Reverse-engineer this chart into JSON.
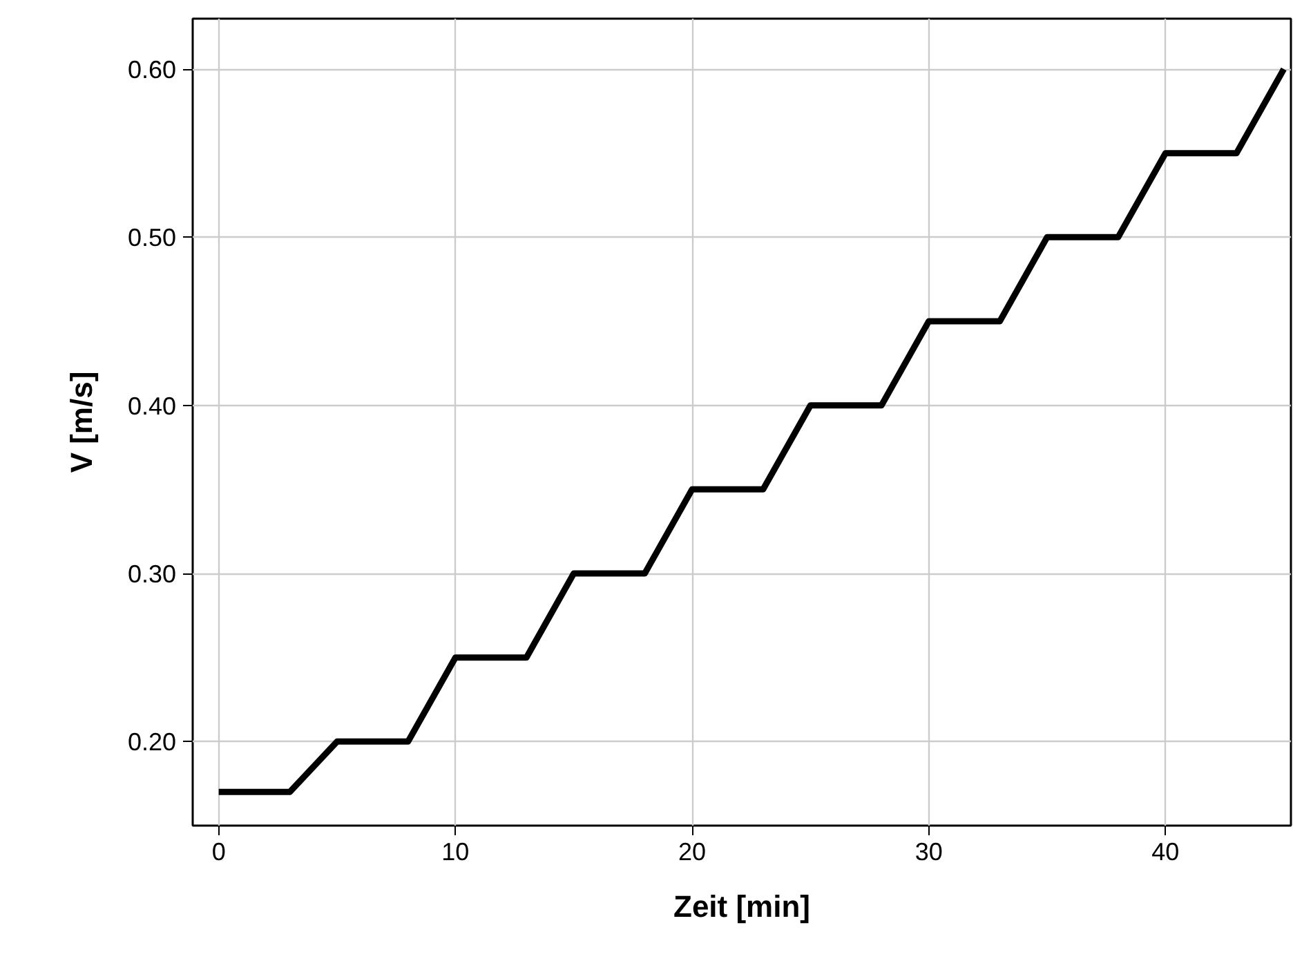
{
  "chart_data": {
    "type": "line",
    "xlabel": "Zeit [min]",
    "ylabel": "V [m/s]",
    "x": [
      0,
      3,
      5,
      8,
      10,
      13,
      15,
      18,
      20,
      23,
      25,
      28,
      30,
      33,
      35,
      38,
      40,
      43,
      45
    ],
    "series": [
      {
        "color": "#000000",
        "values": [
          0.17,
          0.17,
          0.2,
          0.2,
          0.25,
          0.25,
          0.3,
          0.3,
          0.35,
          0.35,
          0.4,
          0.4,
          0.45,
          0.45,
          0.5,
          0.5,
          0.55,
          0.55,
          0.6
        ]
      }
    ],
    "xlim": [
      -1.1,
      45.3
    ],
    "ylim": [
      0.15,
      0.63
    ],
    "xticks": [
      0,
      10,
      20,
      30,
      40
    ],
    "yticks": [
      {
        "value": 0.2,
        "label": "0.20"
      },
      {
        "value": 0.3,
        "label": "0.30"
      },
      {
        "value": 0.4,
        "label": "0.40"
      },
      {
        "value": 0.5,
        "label": "0.50"
      },
      {
        "value": 0.6,
        "label": "0.60"
      }
    ],
    "grid": true,
    "marker": "none",
    "line_style": "solid"
  }
}
